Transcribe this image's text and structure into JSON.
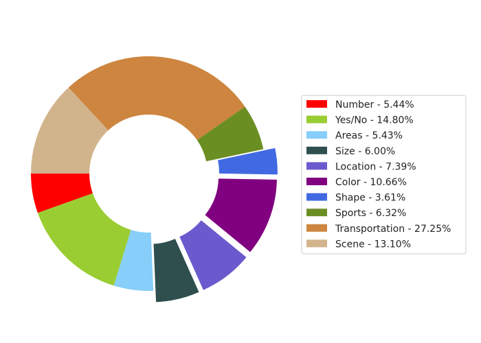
{
  "chart_data": {
    "type": "pie",
    "variant": "donut",
    "title": "",
    "slices": [
      {
        "label": "Number - 5.44%",
        "value": 5.44,
        "color": "#ff0000",
        "exploded": false
      },
      {
        "label": "Yes/No - 14.80%",
        "value": 14.8,
        "color": "#9acd32",
        "exploded": false
      },
      {
        "label": "Areas - 5.43%",
        "value": 5.43,
        "color": "#87cefa",
        "exploded": false
      },
      {
        "label": "Size - 6.00%",
        "value": 6.0,
        "color": "#2f4f4f",
        "exploded": true
      },
      {
        "label": "Location - 7.39%",
        "value": 7.39,
        "color": "#6a5acd",
        "exploded": true
      },
      {
        "label": "Color - 10.66%",
        "value": 10.66,
        "color": "#800080",
        "exploded": true
      },
      {
        "label": "Shape - 3.61%",
        "value": 3.61,
        "color": "#4169e1",
        "exploded": true
      },
      {
        "label": "Sports - 6.32%",
        "value": 6.32,
        "color": "#6b8e23",
        "exploded": false
      },
      {
        "label": "Transportation - 27.25%",
        "value": 27.25,
        "color": "#cd853f",
        "exploded": false
      },
      {
        "label": "Scene - 13.10%",
        "value": 13.1,
        "color": "#d2b48c",
        "exploded": false
      }
    ],
    "start_angle_deg": 180,
    "direction": "counterclockwise",
    "legend_position": "right"
  }
}
